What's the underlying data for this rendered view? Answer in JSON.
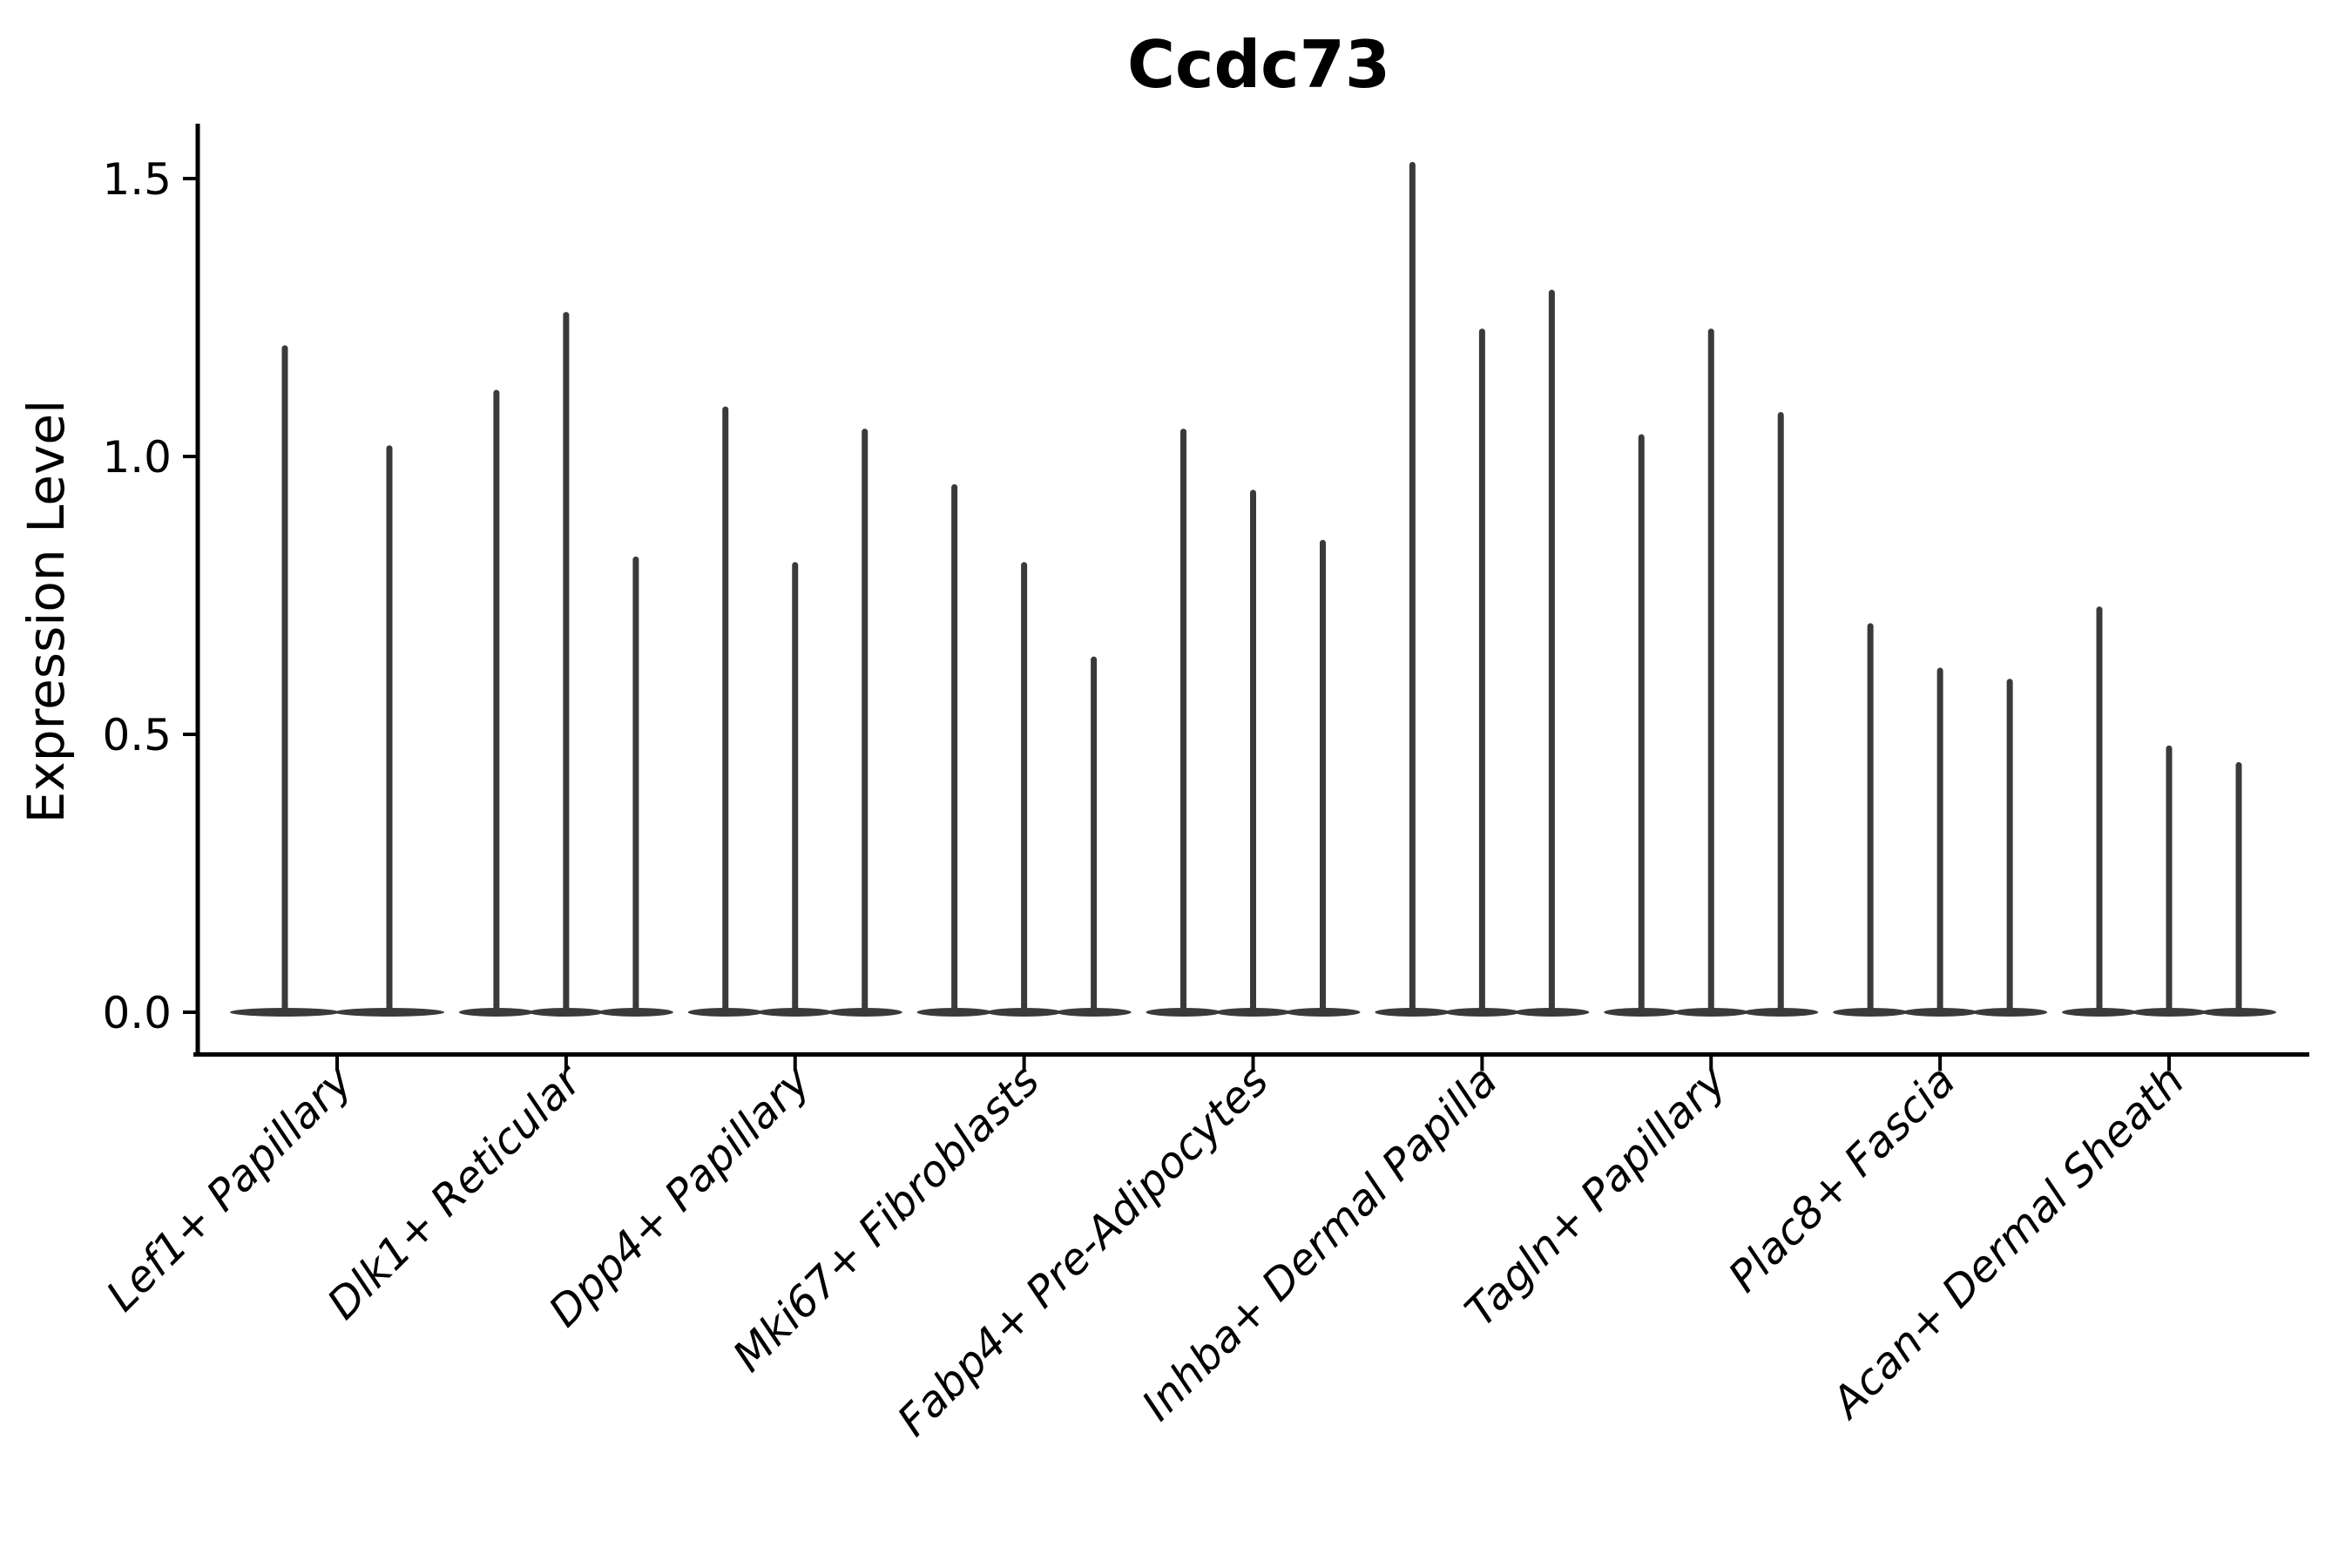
{
  "chart_data": {
    "type": "violin",
    "title": "Ccdc73",
    "ylabel": "Expression Level",
    "xlabel": "",
    "categories": [
      "Lef1+ Papillary",
      "Dlk1+ Reticular",
      "Dpp4+ Papillary",
      "Mki67+ Fibroblasts",
      "Fabp4+ Pre-Adipocytes",
      "Inhba+ Dermal Papilla",
      "Tagln+ Papillary",
      "Plac8+ Fascia",
      "Acan+ Dermal Sheath"
    ],
    "violin_max_expression_per_category": [
      [
        1.2,
        1.02
      ],
      [
        1.12,
        1.26,
        0.82
      ],
      [
        1.09,
        0.81,
        1.05
      ],
      [
        0.95,
        0.81,
        0.64
      ],
      [
        1.05,
        0.94,
        0.85
      ],
      [
        1.53,
        1.23,
        1.3
      ],
      [
        1.04,
        1.23,
        1.08
      ],
      [
        0.7,
        0.62,
        0.6
      ],
      [
        0.73,
        0.48,
        0.45
      ]
    ],
    "violin_shape_note": "density concentrated at 0 (wide flat base) with a thin spike up to the max value",
    "ytick_labels": [
      "0.0",
      "0.5",
      "1.0",
      "1.5"
    ],
    "ytick_values": [
      0.0,
      0.5,
      1.0,
      1.5
    ],
    "ylim": [
      -0.08,
      1.6
    ],
    "grid": false,
    "legend_position": "none",
    "violin_color": "#3a3a3a",
    "axis_color": "#000000",
    "background_color": "#ffffff"
  }
}
